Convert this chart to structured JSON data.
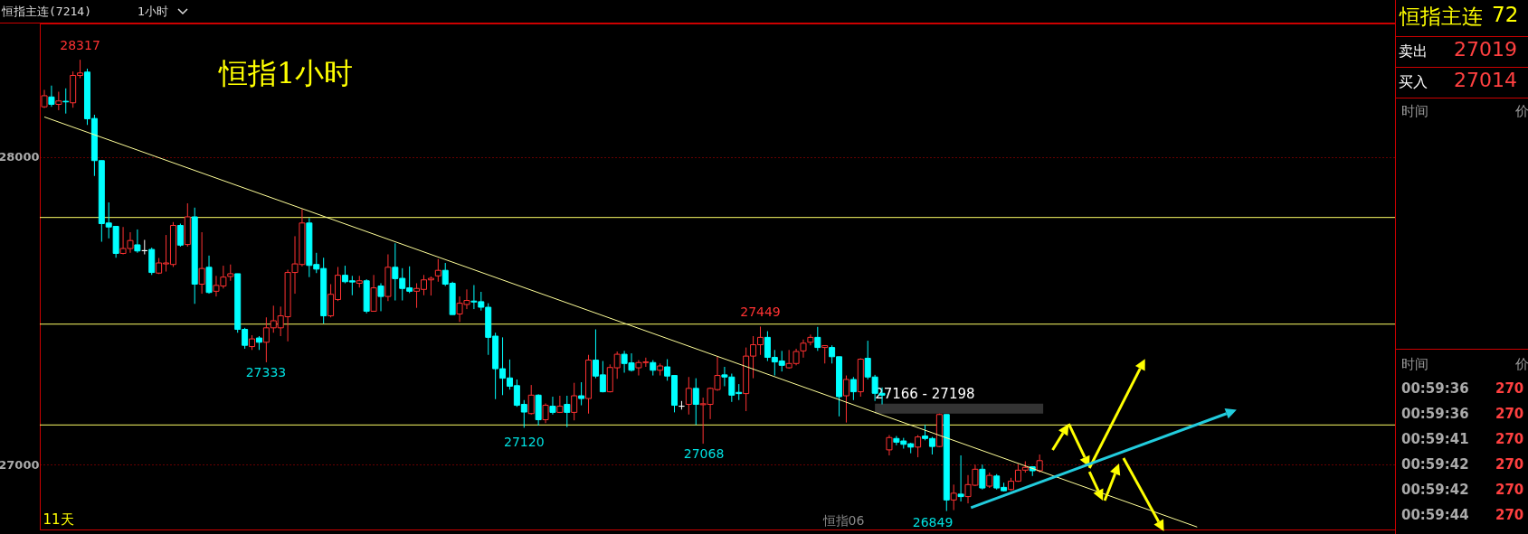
{
  "chart_data": [
    {
      "type": "candlestick",
      "title": "恒指主连(7214)",
      "subtitle": "1小时",
      "annotations": [
        "恒指1小时",
        "11天",
        "恒指06",
        {
          "text": "28317",
          "y": 28317
        },
        "27333",
        {
          "text": "27120",
          "y": 27120
        },
        "27068",
        {
          "text": "27449",
          "y": 27449
        },
        "26849"
      ],
      "categories": [
        null,
        null,
        null,
        null,
        null,
        null,
        null,
        null,
        null,
        null,
        null,
        null,
        null,
        null,
        null,
        null,
        null,
        null,
        null,
        null,
        null,
        null,
        null,
        null,
        null,
        null,
        null,
        null,
        null,
        null,
        null,
        null,
        null,
        null,
        null,
        null,
        null,
        null,
        null,
        null,
        null,
        null,
        null,
        null,
        null,
        null,
        null,
        null,
        null,
        null,
        null,
        null,
        null,
        null,
        null,
        null,
        null,
        null,
        null,
        null,
        null,
        null,
        null,
        null,
        null,
        null,
        null,
        null,
        null,
        null,
        null,
        null,
        null,
        null,
        null,
        null,
        null,
        null,
        null,
        null,
        null,
        null,
        null,
        null,
        null,
        null,
        null,
        null,
        null,
        null,
        null,
        null,
        null,
        null,
        null,
        null,
        null,
        null,
        null,
        null,
        null,
        null,
        null,
        null,
        null,
        null,
        null,
        null,
        null,
        null,
        null,
        null,
        null,
        null,
        null,
        null,
        null,
        null,
        null,
        null,
        null,
        null,
        null,
        null,
        null,
        null,
        null,
        null,
        null,
        null,
        null,
        null,
        null,
        null,
        null,
        null,
        null,
        null,
        null,
        null,
        null,
        null,
        null,
        null,
        null,
        null,
        null,
        null,
        null,
        null,
        null,
        null,
        null,
        null,
        null,
        null,
        null,
        null,
        null,
        null,
        null,
        null,
        null,
        null,
        null,
        null,
        null,
        null,
        null,
        null,
        null,
        null,
        null,
        null,
        null,
        null,
        null,
        null,
        null,
        null,
        null,
        null,
        null,
        null,
        null,
        null,
        null,
        null,
        null
      ],
      "ohlc": [
        [
          28164,
          28219,
          28160,
          28200
        ],
        [
          28196,
          28233,
          28164,
          28172
        ],
        [
          28172,
          28213,
          28153,
          28183
        ],
        [
          28182,
          28224,
          28142,
          28180
        ],
        [
          28177,
          28279,
          28161,
          28266
        ],
        [
          28266,
          28317,
          28257,
          28274
        ],
        [
          28277,
          28288,
          28105,
          28125
        ],
        [
          28126,
          28138,
          27939,
          27989
        ],
        [
          27989,
          27989,
          27725,
          27784
        ],
        [
          27786,
          27853,
          27736,
          27773
        ],
        [
          27775,
          27775,
          27673,
          27687
        ],
        [
          27687,
          27773,
          27684,
          27703
        ],
        [
          27703,
          27756,
          27689,
          27729
        ],
        [
          27715,
          27765,
          27689,
          27695
        ],
        [
          27696,
          27731,
          27684,
          27696
        ],
        [
          27700,
          27706,
          27617,
          27625
        ],
        [
          27623,
          27672,
          27620,
          27656
        ],
        [
          27653,
          27747,
          27628,
          27656
        ],
        [
          27651,
          27789,
          27643,
          27778
        ],
        [
          27778,
          27784,
          27709,
          27714
        ],
        [
          27716,
          27850,
          27709,
          27806
        ],
        [
          27806,
          27836,
          27523,
          27587
        ],
        [
          27587,
          27756,
          27556,
          27638
        ],
        [
          27642,
          27680,
          27556,
          27560
        ],
        [
          27564,
          27614,
          27547,
          27583
        ],
        [
          27581,
          27647,
          27573,
          27610
        ],
        [
          27612,
          27651,
          27598,
          27621
        ],
        [
          27621,
          27621,
          27429,
          27440
        ],
        [
          27440,
          27445,
          27377,
          27388
        ],
        [
          27384,
          27421,
          27373,
          27409
        ],
        [
          27412,
          27418,
          27373,
          27398
        ],
        [
          27398,
          27479,
          27333,
          27445
        ],
        [
          27445,
          27517,
          27429,
          27468
        ],
        [
          27445,
          27514,
          27418,
          27484
        ],
        [
          27481,
          27634,
          27401,
          27625
        ],
        [
          27625,
          27743,
          27556,
          27653
        ],
        [
          27651,
          27831,
          27645,
          27786
        ],
        [
          27786,
          27802,
          27610,
          27648
        ],
        [
          27651,
          27689,
          27623,
          27636
        ],
        [
          27638,
          27673,
          27459,
          27484
        ],
        [
          27484,
          27587,
          27479,
          27554
        ],
        [
          27537,
          27643,
          27532,
          27616
        ],
        [
          27616,
          27647,
          27590,
          27595
        ],
        [
          27598,
          27614,
          27551,
          27594
        ],
        [
          27590,
          27614,
          27576,
          27598
        ],
        [
          27598,
          27603,
          27492,
          27499
        ],
        [
          27499,
          27617,
          27499,
          27575
        ],
        [
          27581,
          27590,
          27499,
          27547
        ],
        [
          27547,
          27684,
          27532,
          27642
        ],
        [
          27642,
          27720,
          27534,
          27605
        ],
        [
          27606,
          27639,
          27534,
          27573
        ],
        [
          27575,
          27645,
          27558,
          27564
        ],
        [
          27564,
          27590,
          27510,
          27573
        ],
        [
          27570,
          27617,
          27551,
          27601
        ],
        [
          27601,
          27612,
          27550,
          27606
        ],
        [
          27614,
          27669,
          27595,
          27632
        ],
        [
          27632,
          27656,
          27581,
          27587
        ],
        [
          27590,
          27595,
          27488,
          27488
        ],
        [
          27490,
          27547,
          27464,
          27525
        ],
        [
          27521,
          27570,
          27506,
          27534
        ],
        [
          27532,
          27584,
          27506,
          27529
        ],
        [
          27530,
          27562,
          27501,
          27512
        ],
        [
          27512,
          27525,
          27357,
          27414
        ],
        [
          27418,
          27429,
          27213,
          27312
        ],
        [
          27312,
          27414,
          27226,
          27281
        ],
        [
          27282,
          27342,
          27244,
          27255
        ],
        [
          27257,
          27277,
          27188,
          27193
        ],
        [
          27196,
          27210,
          27120,
          27171
        ],
        [
          27166,
          27259,
          27163,
          27226
        ],
        [
          27226,
          27229,
          27127,
          27146
        ],
        [
          27146,
          27199,
          27135,
          27193
        ],
        [
          27190,
          27221,
          27163,
          27170
        ],
        [
          27170,
          27224,
          27168,
          27190
        ],
        [
          27196,
          27224,
          27122,
          27170
        ],
        [
          27170,
          27266,
          27144,
          27224
        ],
        [
          27224,
          27268,
          27193,
          27215
        ],
        [
          27215,
          27357,
          27166,
          27340
        ],
        [
          27340,
          27440,
          27281,
          27288
        ],
        [
          27292,
          27337,
          27235,
          27237
        ],
        [
          27237,
          27326,
          27235,
          27316
        ],
        [
          27315,
          27368,
          27279,
          27359
        ],
        [
          27359,
          27370,
          27299,
          27329
        ],
        [
          27331,
          27362,
          27303,
          27307
        ],
        [
          27315,
          27340,
          27290,
          27332
        ],
        [
          27332,
          27348,
          27318,
          27334
        ],
        [
          27332,
          27340,
          27290,
          27307
        ],
        [
          27307,
          27329,
          27290,
          27321
        ],
        [
          27318,
          27343,
          27273,
          27288
        ],
        [
          27290,
          27290,
          27170,
          27193
        ],
        [
          27190,
          27207,
          27179,
          27190
        ],
        [
          27196,
          27285,
          27163,
          27248
        ],
        [
          27248,
          27281,
          27129,
          27196
        ],
        [
          27195,
          27218,
          27068,
          27198
        ],
        [
          27196,
          27251,
          27148,
          27248
        ],
        [
          27244,
          27351,
          27240,
          27290
        ],
        [
          27292,
          27318,
          27255,
          27285
        ],
        [
          27285,
          27296,
          27204,
          27226
        ],
        [
          27235,
          27262,
          27210,
          27231
        ],
        [
          27231,
          27381,
          27174,
          27353
        ],
        [
          27353,
          27418,
          27281,
          27390
        ],
        [
          27390,
          27449,
          27357,
          27414
        ],
        [
          27414,
          27434,
          27337,
          27349
        ],
        [
          27349,
          27373,
          27290,
          27334
        ],
        [
          27337,
          27370,
          27303,
          27323
        ],
        [
          27315,
          27373,
          27312,
          27329
        ],
        [
          27329,
          27377,
          27323,
          27368
        ],
        [
          27370,
          27407,
          27348,
          27395
        ],
        [
          27398,
          27423,
          27388,
          27414
        ],
        [
          27414,
          27448,
          27370,
          27381
        ],
        [
          27381,
          27388,
          27329,
          27387
        ],
        [
          27381,
          27388,
          27329,
          27351
        ],
        [
          27351,
          27351,
          27157,
          27221
        ],
        [
          27224,
          27290,
          27137,
          27277
        ],
        [
          27277,
          27285,
          27210,
          27237
        ],
        [
          27237,
          27346,
          27221,
          27343
        ],
        [
          27346,
          27403,
          27277,
          27285
        ],
        [
          27285,
          27292,
          27207,
          27232
        ],
        [
          27232,
          27251,
          27196,
          27226
        ],
        [
          27048,
          27096,
          27030,
          27088
        ],
        [
          27085,
          27093,
          27063,
          27073
        ],
        [
          27077,
          27087,
          27052,
          27066
        ],
        [
          27068,
          27071,
          27037,
          27057
        ],
        [
          27057,
          27096,
          27024,
          27090
        ],
        [
          27093,
          27129,
          27079,
          27085
        ],
        [
          27085,
          27090,
          27033,
          27059
        ],
        [
          27059,
          27166,
          27057,
          27163
        ],
        [
          27163,
          27163,
          26849,
          26885
        ],
        [
          26885,
          26935,
          26852,
          26907
        ],
        [
          26904,
          27030,
          26880,
          26896
        ],
        [
          26896,
          26966,
          26874,
          26935
        ],
        [
          26933,
          27000,
          26930,
          26985
        ],
        [
          26985,
          27000,
          26919,
          26924
        ],
        [
          26930,
          26974,
          26924,
          26965
        ],
        [
          26963,
          26969,
          26919,
          26924
        ],
        [
          26926,
          26941,
          26913,
          26915
        ],
        [
          26919,
          26957,
          26915,
          26946
        ],
        [
          26946,
          27002,
          26944,
          26982
        ],
        [
          26982,
          27011,
          26974,
          26991
        ],
        [
          26993,
          26993,
          26963,
          26980
        ],
        [
          26980,
          27033,
          26974,
          27013
        ],
        null,
        null,
        null,
        null,
        null,
        null,
        null,
        null,
        null,
        null,
        null,
        null,
        null,
        null,
        null,
        null,
        null,
        null,
        null,
        null,
        null,
        null,
        null,
        null,
        null,
        null,
        null,
        null,
        null,
        null,
        null,
        null,
        null,
        null,
        null,
        null,
        null,
        null,
        null,
        null,
        null,
        null,
        null,
        null,
        null,
        null,
        null,
        null,
        null
      ],
      "colors": [
        "#ff3232",
        "#00ffff",
        "#ff3232",
        "#00ffff",
        "#ff3232",
        "#ff3232",
        "#00ffff",
        "#00ffff",
        "#00ffff",
        "#00ffff",
        "#00ffff",
        "#ff3232",
        "#ff3232",
        "#00ffff",
        "#ffffff",
        "#00ffff",
        "#ff3232",
        "#ff3232",
        "#ff3232",
        "#00ffff",
        "#ff3232",
        "#00ffff",
        "#ff3232",
        "#00ffff",
        "#ff3232",
        "#ff3232",
        "#ff3232",
        "#00ffff",
        "#00ffff",
        "#ff3232",
        "#00ffff",
        "#ff3232",
        "#ff3232",
        "#ff3232",
        "#ff3232",
        "#ff3232",
        "#ff3232",
        "#00ffff",
        "#00ffff",
        "#00ffff",
        "#ff3232",
        "#ff3232",
        "#00ffff",
        "#00ffff",
        "#ff3232",
        "#00ffff",
        "#ff3232",
        "#00ffff",
        "#ff3232",
        "#00ffff",
        "#00ffff",
        "#00ffff",
        "#ff3232",
        "#ff3232",
        "#ff3232",
        "#ff3232",
        "#00ffff",
        "#00ffff",
        "#ff3232",
        "#ff3232",
        "#00ffff",
        "#00ffff",
        "#00ffff",
        "#00ffff",
        "#00ffff",
        "#00ffff",
        "#00ffff",
        "#00ffff",
        "#ff3232",
        "#00ffff",
        "#ff3232",
        "#00ffff",
        "#ff3232",
        "#00ffff",
        "#ff3232",
        "#00ffff",
        "#ff3232",
        "#00ffff",
        "#00ffff",
        "#ff3232",
        "#ff3232",
        "#00ffff",
        "#00ffff",
        "#ff3232",
        "#ff3232",
        "#00ffff",
        "#ff3232",
        "#00ffff",
        "#00ffff",
        "#ffffff",
        "#ff3232",
        "#00ffff",
        "#ff3232",
        "#ff3232",
        "#ff3232",
        "#00ffff",
        "#00ffff",
        "#00ffff",
        "#ff3232",
        "#ff3232",
        "#ff3232",
        "#00ffff",
        "#00ffff",
        "#00ffff",
        "#ff3232",
        "#ff3232",
        "#ff3232",
        "#ff3232",
        "#00ffff",
        "#ff3232",
        "#00ffff",
        "#00ffff",
        "#ff3232",
        "#00ffff",
        "#ff3232",
        "#00ffff",
        "#00ffff",
        "#00ffff",
        "#ff3232",
        "#00ffff",
        "#00ffff",
        "#00ffff",
        "#ff3232",
        "#00ffff",
        "#00ffff",
        "#ff3232",
        "#00ffff",
        "#ff3232",
        "#00ffff",
        "#ff3232",
        "#ff3232",
        "#00ffff",
        "#ff3232",
        "#00ffff",
        "#00ffff",
        "#ff3232",
        "#ff3232",
        "#ff3232",
        "#00ffff",
        "#ff3232",
        null,
        null,
        null,
        null,
        null,
        null,
        null,
        null,
        null,
        null,
        null,
        null,
        null,
        null,
        null,
        null,
        null,
        null,
        null,
        null,
        null,
        null,
        null,
        null,
        null,
        null,
        null,
        null,
        null,
        null,
        null,
        null,
        null,
        null,
        null,
        null,
        null,
        null,
        null,
        null,
        null,
        null,
        null,
        null,
        null,
        null,
        null,
        null,
        null
      ],
      "series": [
        {
          "type": "line",
          "color": "#ffff99",
          "values": [
            28131,
            null,
            null,
            null,
            null,
            null,
            null,
            null,
            null,
            null,
            null,
            null,
            null,
            null,
            null,
            null,
            null,
            null,
            null,
            null,
            null,
            null,
            null,
            null,
            null,
            null,
            null,
            null,
            null,
            null,
            null,
            null,
            null,
            null,
            null,
            null,
            null,
            null,
            null,
            null,
            null,
            null,
            null,
            null,
            null,
            null,
            null,
            null,
            null,
            null,
            null,
            null,
            null,
            null,
            null,
            null,
            null,
            null,
            null,
            null,
            null,
            null,
            null,
            null,
            null,
            null,
            null,
            null,
            null,
            null,
            null,
            null,
            null,
            null,
            null,
            null,
            null,
            null,
            null,
            null,
            null,
            null,
            null,
            null,
            null,
            null,
            null,
            null,
            null,
            null,
            null,
            null,
            null,
            null,
            null,
            null,
            null,
            null,
            null,
            null,
            null,
            null,
            null,
            null,
            null,
            null,
            null,
            null,
            null,
            null,
            null,
            null,
            null,
            null,
            null,
            null,
            null,
            null,
            null,
            null,
            null,
            null,
            null,
            null,
            null,
            null,
            null,
            null,
            null,
            null,
            null,
            null,
            null,
            null,
            null,
            null,
            null,
            null,
            null,
            null,
            null,
            null,
            null,
            null,
            null,
            null,
            null,
            null,
            null,
            null,
            null,
            null,
            null,
            null,
            null,
            null,
            null,
            null,
            null,
            null,
            null,
            26797,
            null,
            null,
            null,
            null,
            null,
            null,
            null,
            null,
            null,
            null,
            null,
            null,
            null,
            null,
            null,
            null,
            null,
            null,
            null,
            null,
            null,
            null,
            null,
            null,
            null,
            null,
            null
          ]
        }
      ],
      "ylim": [
        26789,
        28435
      ],
      "yticks": [
        27000,
        28000
      ],
      "grid": "y",
      "tick_labels": "y",
      "ref_lines": [
        {
          "axis": "y",
          "value": 27804,
          "color": "#ffff66"
        },
        {
          "axis": "y",
          "value": 27457,
          "color": "#ffff66"
        },
        {
          "axis": "y",
          "value": 27129,
          "color": "#ffff66"
        }
      ],
      "bands": [
        {
          "axis": "y",
          "from": 27166,
          "to": 27198,
          "label": "27166 - 27198",
          "color": "#333333"
        }
      ]
    },
    {
      "type": "other",
      "title": "恒指主连",
      "annotations": [
        "72",
        "卖出",
        "27019",
        "买入",
        "27014",
        "时间",
        "价",
        "时间",
        "价",
        "00:59:36",
        "270",
        "00:59:36",
        "270",
        "00:59:41",
        "270",
        "00:59:42",
        "270",
        "00:59:42",
        "270",
        "00:59:44",
        "270"
      ]
    }
  ]
}
